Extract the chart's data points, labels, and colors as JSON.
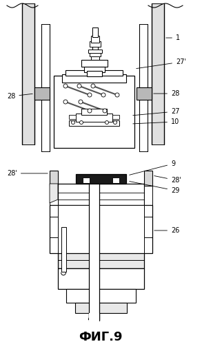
{
  "title": "ФИГ.9",
  "title_fontsize": 13,
  "bg_color": "#ffffff",
  "line_color": "#000000",
  "gray_light": "#d8d8d8",
  "gray_mid": "#b8b8b8",
  "gray_dark": "#888888",
  "black": "#1a1a1a"
}
